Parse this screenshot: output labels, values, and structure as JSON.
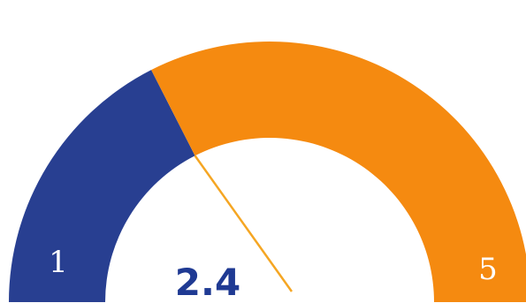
{
  "chart_data": {
    "type": "gauge",
    "min": 1,
    "max": 5,
    "value": 2.4,
    "min_label": "1",
    "max_label": "5",
    "value_label": "2.4",
    "filled_color": "#283f91",
    "remaining_color": "#f58a10",
    "needle_color": "#f5a623",
    "value_text_color": "#1f3a93"
  }
}
